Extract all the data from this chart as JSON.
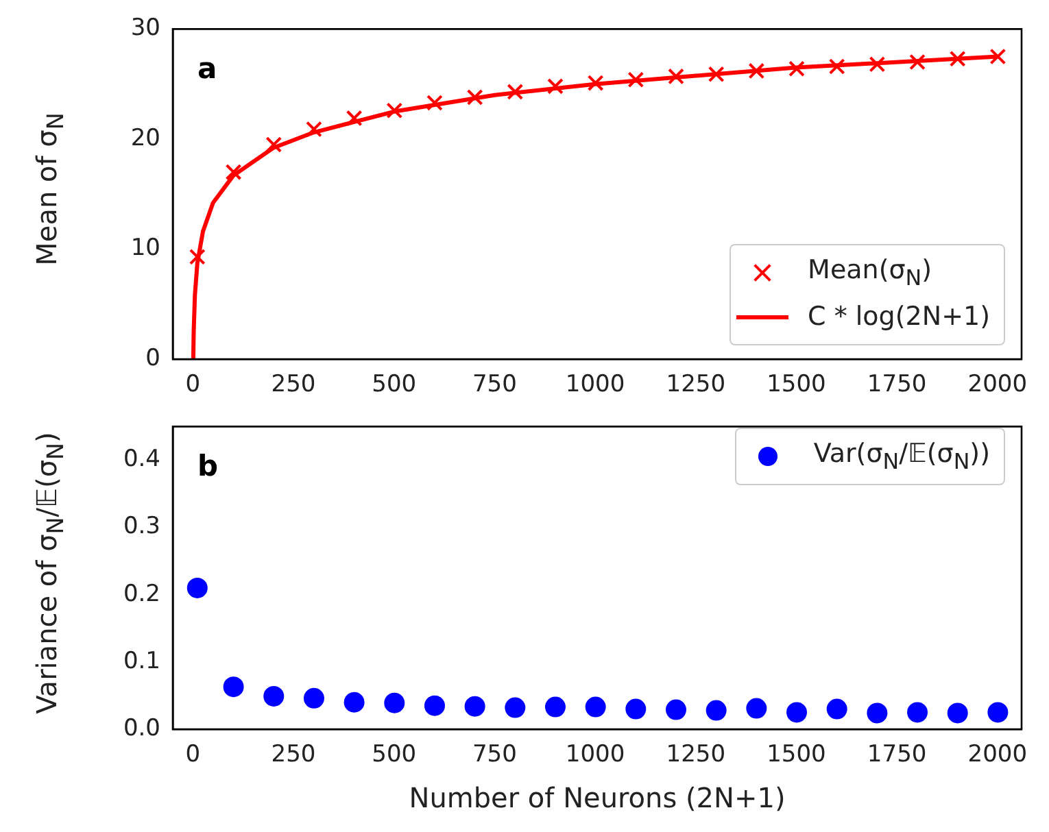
{
  "chart_data": [
    {
      "type": "scatter",
      "title": "a",
      "ylabel": "Mean of σ$_{N}$",
      "xlim": [
        -50,
        2060
      ],
      "ylim": [
        0,
        30
      ],
      "xticks": [
        0,
        250,
        500,
        750,
        1000,
        1250,
        1500,
        1750,
        2000
      ],
      "yticks": [
        0,
        10,
        20,
        30
      ],
      "legend": "bottom right",
      "series": [
        {
          "name": "Mean(σ$_{N}$)",
          "color": "#ff0000",
          "marker": "cross",
          "x": [
            11,
            101,
            201,
            301,
            401,
            501,
            601,
            701,
            801,
            901,
            1001,
            1101,
            1201,
            1301,
            1401,
            1501,
            1601,
            1701,
            1801,
            1901,
            2001
          ],
          "values": [
            9.3,
            17.0,
            19.5,
            20.9,
            21.9,
            22.6,
            23.3,
            23.8,
            24.3,
            24.8,
            25.1,
            25.4,
            25.7,
            25.9,
            26.2,
            26.4,
            26.6,
            26.8,
            27.0,
            27.3,
            27.5
          ]
        },
        {
          "name": "C * log(2N+1)",
          "color": "#ff0000",
          "type": "line",
          "marker": "none",
          "x": [
            1,
            2,
            5,
            11,
            25,
            50,
            101,
            200,
            300,
            500,
            750,
            1000,
            1500,
            2001
          ],
          "values": [
            0,
            2.5,
            5.8,
            8.7,
            11.6,
            14.2,
            16.7,
            19.2,
            20.6,
            22.5,
            24.0,
            25.0,
            26.5,
            27.5
          ]
        }
      ]
    },
    {
      "type": "scatter",
      "title": "b",
      "xlabel": "Number of Neurons (2N+1)",
      "ylabel": "Variance of σ$_{N}$/𝔼(σ$_{N}$)",
      "xlim": [
        -50,
        2060
      ],
      "ylim": [
        0,
        0.45
      ],
      "xticks": [
        0,
        250,
        500,
        750,
        1000,
        1250,
        1500,
        1750,
        2000
      ],
      "yticks": [
        {
          "value": 0,
          "label": "0.0"
        },
        0.1,
        0.2,
        0.3,
        0.4
      ],
      "legend": "top right",
      "series": [
        {
          "name": "Var(σ$_{N}$/𝔼(σ$_{N}$))",
          "color": "#0000ff",
          "marker": "circle",
          "x": [
            11,
            101,
            201,
            301,
            401,
            501,
            601,
            701,
            801,
            901,
            1001,
            1101,
            1201,
            1301,
            1401,
            1501,
            1601,
            1701,
            1801,
            1901,
            2001
          ],
          "values": [
            0.21,
            0.063,
            0.049,
            0.046,
            0.04,
            0.039,
            0.035,
            0.034,
            0.032,
            0.033,
            0.033,
            0.03,
            0.029,
            0.028,
            0.031,
            0.025,
            0.03,
            0.024,
            0.025,
            0.024,
            0.025
          ]
        }
      ]
    }
  ]
}
